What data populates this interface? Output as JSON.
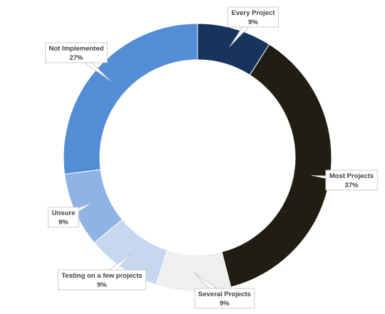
{
  "chart_data": {
    "type": "pie",
    "variant": "donut",
    "slices": [
      {
        "label": "Every Project",
        "value": 9,
        "display": "9%",
        "color": "#17345f"
      },
      {
        "label": "Most Projects",
        "value": 37,
        "display": "37%",
        "color": "#201d13"
      },
      {
        "label": "Several Projects",
        "value": 9,
        "display": "9%",
        "color": "#efefef"
      },
      {
        "label": "Testing on a few projects",
        "value": 9,
        "display": "9%",
        "color": "#c6d8f0"
      },
      {
        "label": "Unsure",
        "value": 9,
        "display": "9%",
        "color": "#8fb3e5"
      },
      {
        "label": "Not Implemented",
        "value": 27,
        "display": "27%",
        "color": "#538dd5"
      }
    ],
    "legend": "none"
  }
}
